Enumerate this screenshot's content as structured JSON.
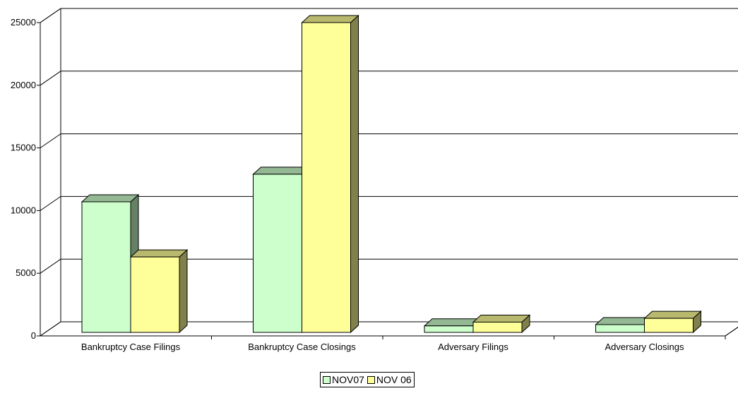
{
  "chart_data": {
    "type": "bar",
    "categories": [
      "Bankruptcy Case Filings",
      "Bankruptcy Case Closings",
      "Adversary Filings",
      "Adversary Closings"
    ],
    "series": [
      {
        "name": "NOV07",
        "values": [
          10700,
          12900,
          800,
          900
        ],
        "color": "#ccffcc"
      },
      {
        "name": "NOV 06",
        "values": [
          6300,
          25000,
          1100,
          1400
        ],
        "color": "#ffff99"
      }
    ],
    "yticks": [
      "0",
      "5000",
      "10000",
      "15000",
      "20000",
      "25000"
    ],
    "ylim": [
      0,
      25000
    ],
    "grid": true,
    "legend_position": "bottom",
    "title": "",
    "xlabel": "",
    "ylabel": ""
  }
}
